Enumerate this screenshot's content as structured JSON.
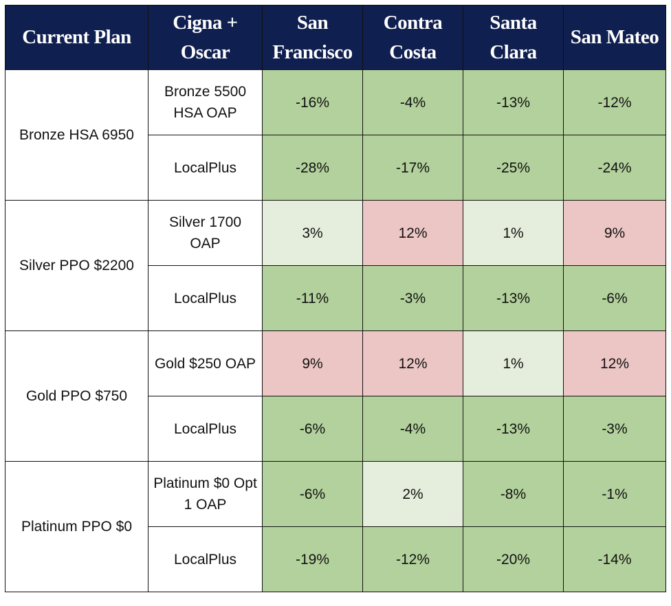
{
  "table": {
    "header": [
      "Current Plan",
      "Cigna + Oscar",
      "San Francisco",
      "Contra Costa",
      "Santa Clara",
      "San Mateo"
    ],
    "header_fill": "#0f1f4f",
    "groups": [
      {
        "plan": "Bronze HSA 6950",
        "rows": [
          {
            "option": "Bronze 5500 HSA OAP",
            "cells": [
              "-16%",
              "-4%",
              "-13%",
              "-12%"
            ],
            "fills": [
              "#b3d19c",
              "#b3d19c",
              "#b3d19c",
              "#b3d19c"
            ]
          },
          {
            "option": "LocalPlus",
            "cells": [
              "-28%",
              "-17%",
              "-25%",
              "-24%"
            ],
            "fills": [
              "#b3d19c",
              "#b3d19c",
              "#b3d19c",
              "#b3d19c"
            ]
          }
        ]
      },
      {
        "plan": "Silver PPO $2200",
        "rows": [
          {
            "option": "Silver 1700 OAP",
            "cells": [
              "3%",
              "12%",
              "1%",
              "9%"
            ],
            "fills": [
              "#e5eedc",
              "#ebc6c4",
              "#e5eedc",
              "#ebc6c4"
            ]
          },
          {
            "option": "LocalPlus",
            "cells": [
              "-11%",
              "-3%",
              "-13%",
              "-6%"
            ],
            "fills": [
              "#b3d19c",
              "#b3d19c",
              "#b3d19c",
              "#b3d19c"
            ]
          }
        ]
      },
      {
        "plan": "Gold PPO $750",
        "rows": [
          {
            "option": "Gold $250 OAP",
            "cells": [
              "9%",
              "12%",
              "1%",
              "12%"
            ],
            "fills": [
              "#ebc6c4",
              "#ebc6c4",
              "#e5eedc",
              "#ebc6c4"
            ]
          },
          {
            "option": "LocalPlus",
            "cells": [
              "-6%",
              "-4%",
              "-13%",
              "-3%"
            ],
            "fills": [
              "#b3d19c",
              "#b3d19c",
              "#b3d19c",
              "#b3d19c"
            ]
          }
        ]
      },
      {
        "plan": "Platinum PPO $0",
        "rows": [
          {
            "option": "Platinum $0 Opt 1 OAP",
            "cells": [
              "-6%",
              "2%",
              "-8%",
              "-1%"
            ],
            "fills": [
              "#b3d19c",
              "#e5eedc",
              "#b3d19c",
              "#b3d19c"
            ]
          },
          {
            "option": "LocalPlus",
            "cells": [
              "-19%",
              "-12%",
              "-20%",
              "-14%"
            ],
            "fills": [
              "#b3d19c",
              "#b3d19c",
              "#b3d19c",
              "#b3d19c"
            ]
          }
        ]
      }
    ]
  }
}
